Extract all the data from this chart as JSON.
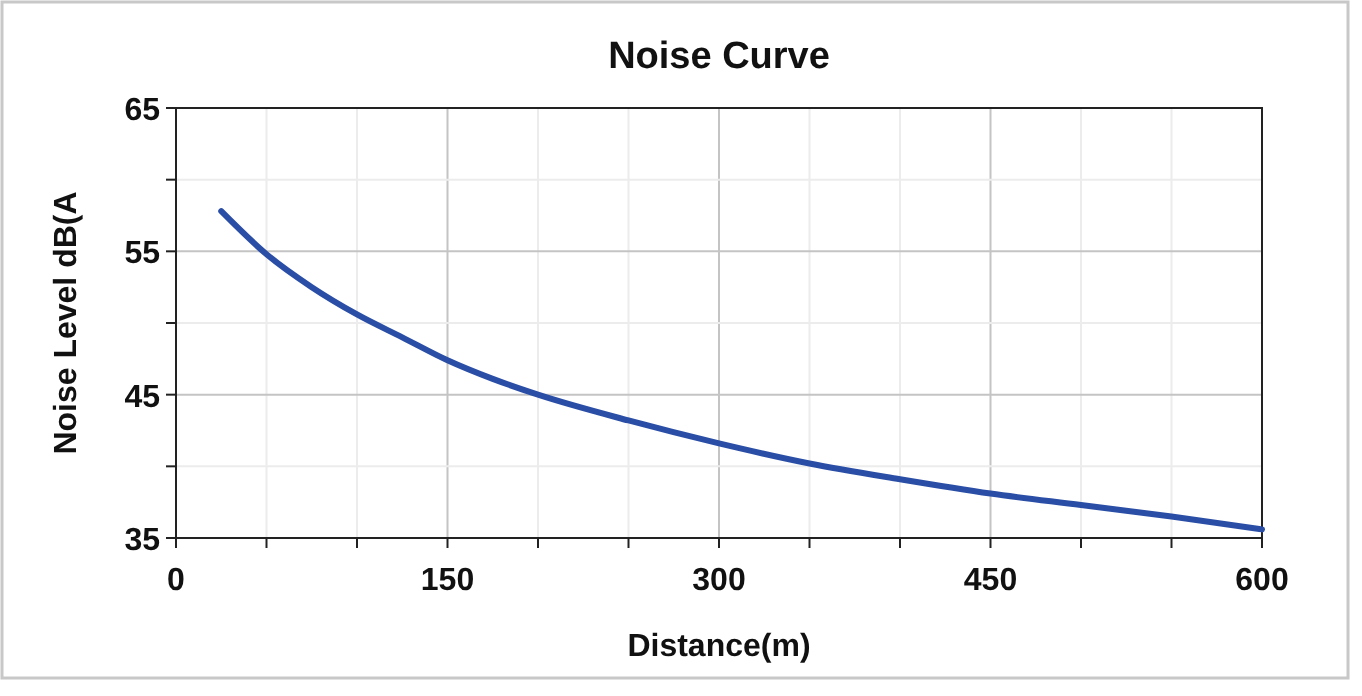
{
  "chart_data": {
    "type": "line",
    "title": "Noise Curve",
    "xlabel": "Distance(m)",
    "ylabel": "Noise Level dB(A",
    "series": [
      {
        "color": "#2a4ea6",
        "x": [
          25,
          50,
          75,
          100,
          125,
          150,
          175,
          200,
          250,
          300,
          350,
          400,
          450,
          500,
          550,
          600
        ],
        "values": [
          57.8,
          54.8,
          52.5,
          50.6,
          49,
          47.4,
          46.1,
          45,
          43.2,
          41.6,
          40.2,
          39.1,
          38.1,
          37.3,
          36.5,
          35.6
        ]
      }
    ],
    "xlim": [
      0,
      600
    ],
    "xticks": [
      0,
      {
        "value": 50,
        "label": null
      },
      {
        "value": 100,
        "label": null
      },
      150,
      {
        "value": 200,
        "label": null
      },
      {
        "value": 250,
        "label": null
      },
      300,
      {
        "value": 350,
        "label": null
      },
      {
        "value": 400,
        "label": null
      },
      450,
      {
        "value": 500,
        "label": null
      },
      {
        "value": 550,
        "label": null
      },
      600
    ],
    "ylim": [
      35,
      65
    ],
    "yticks": [
      35,
      {
        "value": 40,
        "label": null
      },
      45,
      {
        "value": 50,
        "label": null
      },
      55,
      {
        "value": 60,
        "label": null
      },
      65
    ],
    "grid": true,
    "marker": "none",
    "line_style": "solid"
  }
}
